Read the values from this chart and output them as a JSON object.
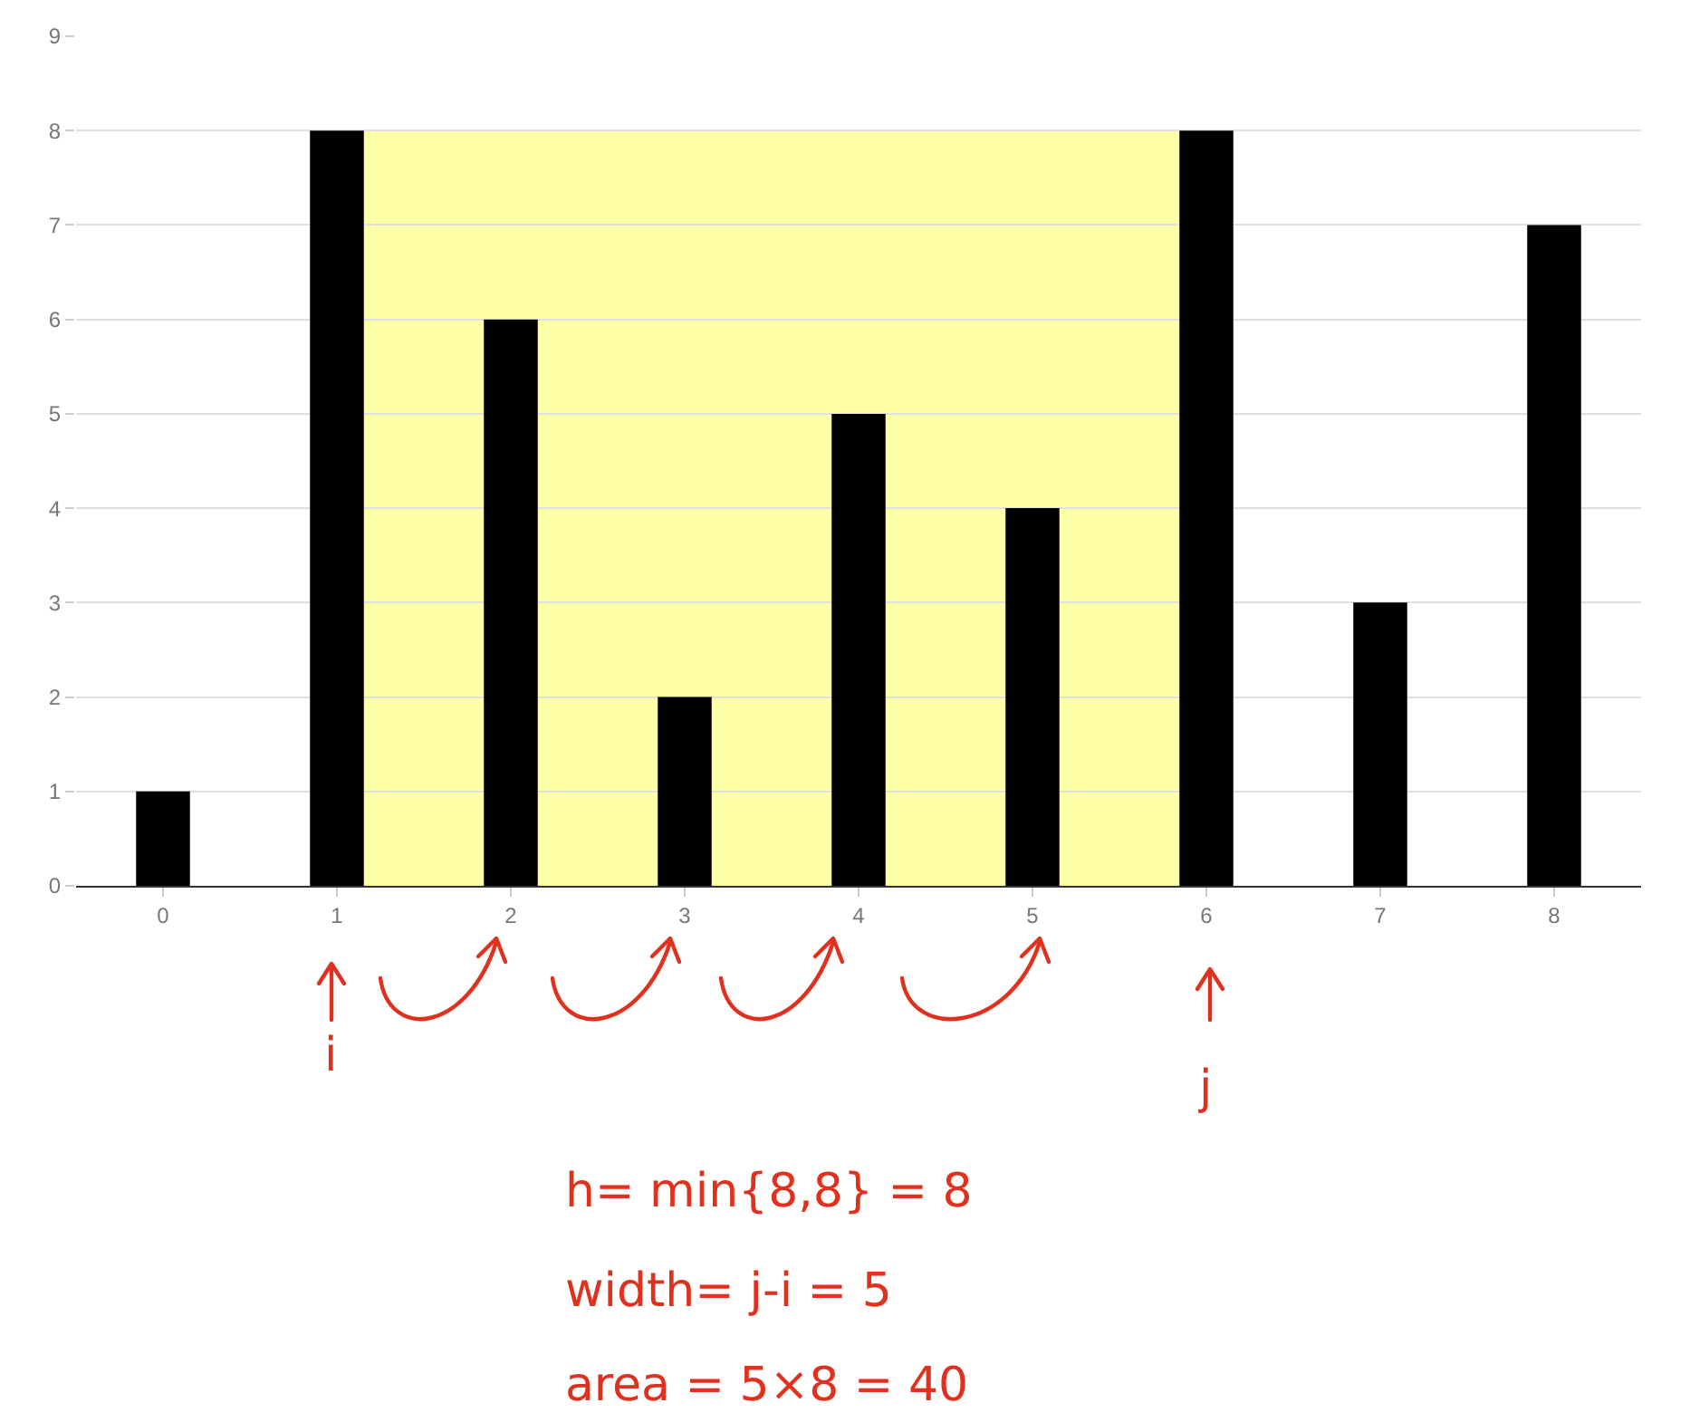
{
  "chart_data": {
    "type": "bar",
    "x": [
      0,
      1,
      2,
      3,
      4,
      5,
      6,
      7,
      8
    ],
    "values": [
      1,
      8,
      6,
      2,
      5,
      4,
      8,
      3,
      7
    ],
    "color": "#000000",
    "xlim": [
      -0.5,
      8.5
    ],
    "xticks": [
      0,
      1,
      2,
      3,
      4,
      5,
      6,
      7,
      8
    ],
    "ylim": [
      0,
      9
    ],
    "yticks": [
      0,
      1,
      2,
      3,
      4,
      5,
      6,
      7,
      8,
      9
    ],
    "grid": "y",
    "bands": [
      {
        "axis": "x",
        "from": 0.85,
        "to": 6.15,
        "color": "#ffff99"
      }
    ],
    "annotations": [
      "i",
      "j",
      "h= min{8,8} = 8",
      "width= j-i = 5",
      "area = 5×8 = 40"
    ]
  }
}
